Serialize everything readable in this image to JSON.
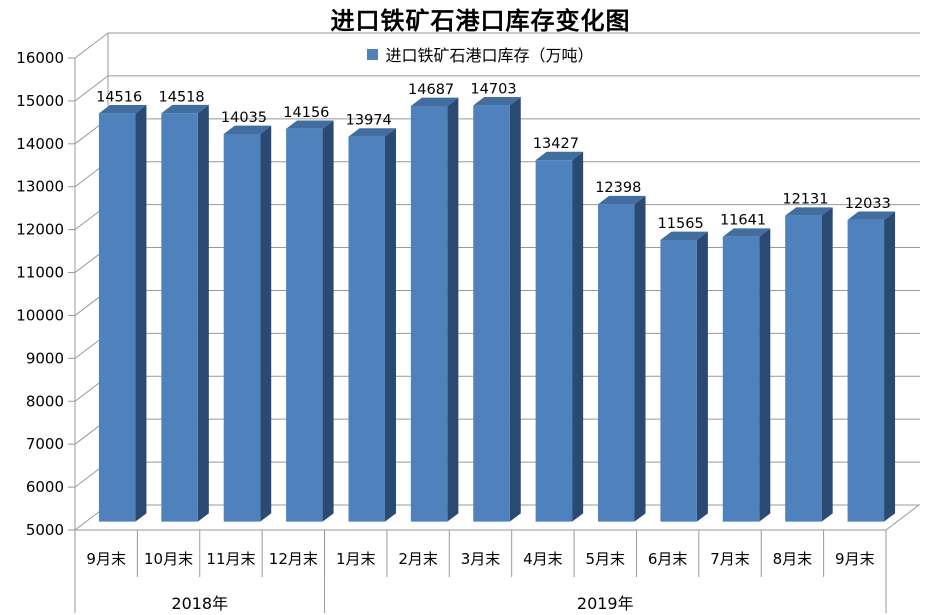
{
  "chart_data": {
    "type": "bar",
    "style": "3d-column",
    "title": "进口铁矿石港口库存变化图",
    "legend": "进口铁矿石港口库存（万吨）",
    "legend_position": "top-center",
    "categories": [
      "9月末",
      "10月末",
      "11月末",
      "12月末",
      "1月末",
      "2月末",
      "3月末",
      "4月末",
      "5月末",
      "6月末",
      "7月末",
      "8月末",
      "9月末"
    ],
    "category_groups": [
      {
        "label": "2018年",
        "count": 4
      },
      {
        "label": "2019年",
        "count": 9
      }
    ],
    "series": [
      {
        "name": "进口铁矿石港口库存（万吨）",
        "values": [
          14516,
          14518,
          14035,
          14156,
          13974,
          14687,
          14703,
          13427,
          12398,
          11565,
          11641,
          12131,
          12033
        ]
      }
    ],
    "xlabel": "",
    "ylabel": "",
    "ylim": [
      5000,
      16000
    ],
    "ytick_interval": 1000,
    "yticks": [
      5000,
      6000,
      7000,
      8000,
      9000,
      10000,
      11000,
      12000,
      13000,
      14000,
      15000,
      16000
    ],
    "grid": true,
    "data_labels": true
  },
  "colors": {
    "bar_front": "#4f81bd",
    "bar_top": "#426d9f",
    "bar_side": "#2a4a72",
    "gridline": "#999999",
    "axis_line": "#999999",
    "text": "#000000",
    "background": "#ffffff"
  }
}
